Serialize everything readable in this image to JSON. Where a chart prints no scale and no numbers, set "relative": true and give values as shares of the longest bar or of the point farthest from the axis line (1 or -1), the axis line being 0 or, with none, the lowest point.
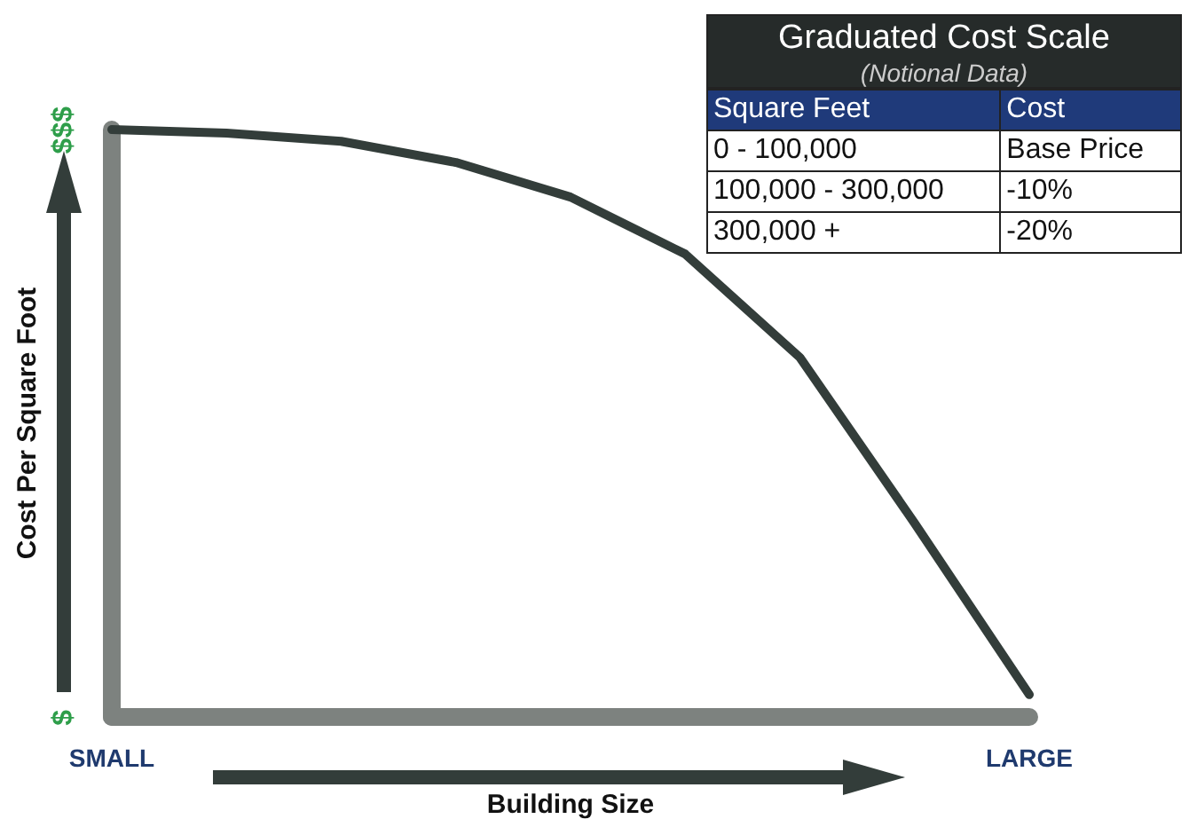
{
  "chart_data": [
    {
      "type": "line",
      "xlabel": "Building Size",
      "ylabel": "Cost Per Square Foot",
      "categories": [
        "SMALL",
        null,
        null,
        null,
        null,
        null,
        null,
        null,
        "LARGE"
      ],
      "values": [
        1.0,
        0.994,
        0.98,
        0.944,
        0.885,
        0.788,
        0.612,
        0.33,
        0.038
      ],
      "color": "#333d3a",
      "relative": true,
      "marker": "none",
      "line_style": "solid",
      "annotations": [
        "$$$",
        "$"
      ]
    },
    {
      "type": "other",
      "title": "Graduated Cost Scale",
      "subtitle": "(Notional Data)",
      "annotations": [
        "Square Feet",
        "Cost",
        "0 - 100,000",
        "Base Price",
        "100,000 - 300,000",
        "-10%",
        "300,000 +",
        "-20%"
      ]
    }
  ]
}
